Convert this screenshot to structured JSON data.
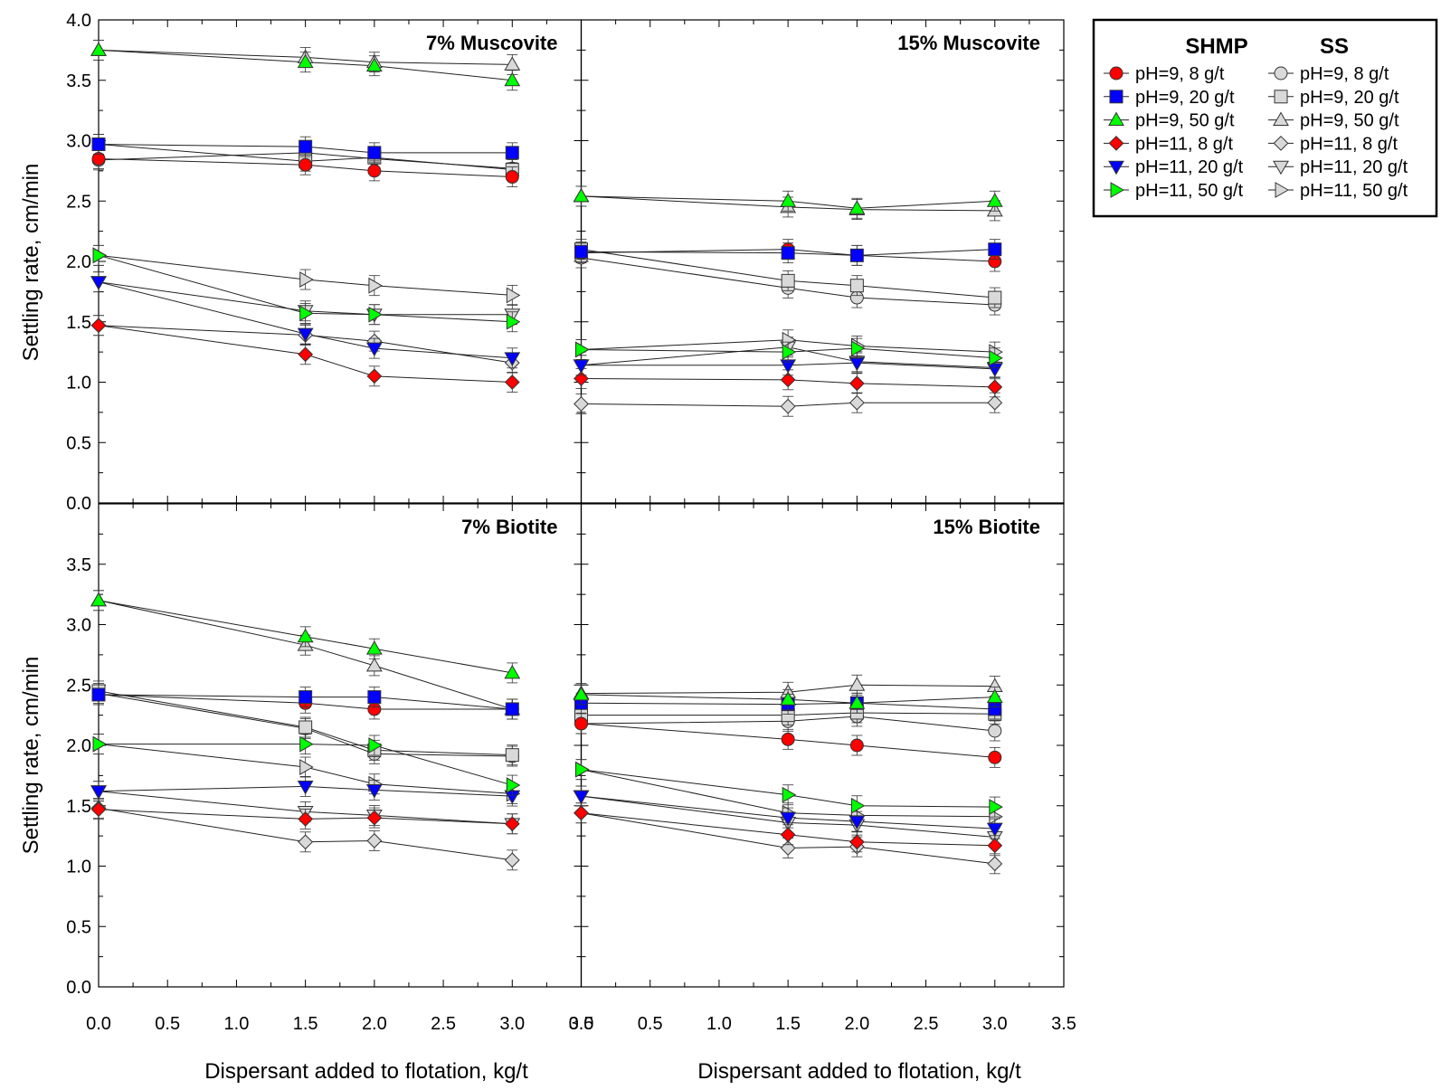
{
  "figure": {
    "y_axis_label": "Settling rate, cm/min",
    "x_axis_label": "Dispersant added to flotation, kg/t",
    "x_ticks": [
      "0.0",
      "0.5",
      "1.0",
      "1.5",
      "2.0",
      "2.5",
      "3.0",
      "3.5"
    ],
    "y_ticks_top": [
      "0.0",
      "0.5",
      "1.0",
      "1.5",
      "2.0",
      "2.5",
      "3.0",
      "3.5",
      "4.0"
    ],
    "y_ticks_bottom": [
      "0.0",
      "0.5",
      "1.0",
      "1.5",
      "2.0",
      "2.5",
      "3.0",
      "3.5"
    ],
    "bottom_left_x_last_tick": "3.5",
    "bottom_right_x_first_tick": "0.0"
  },
  "legend": {
    "placement": "right",
    "header_shmp": "SHMP",
    "header_ss": "SS",
    "shmp": [
      {
        "label": "pH=9, 8 g/t",
        "marker": "circle",
        "color": "#ff0000"
      },
      {
        "label": "pH=9, 20 g/t",
        "marker": "square",
        "color": "#0000ff"
      },
      {
        "label": "pH=9, 50 g/t",
        "marker": "triangle-up",
        "color": "#00ff00"
      },
      {
        "label": "pH=11, 8 g/t",
        "marker": "diamond",
        "color": "#ff0000"
      },
      {
        "label": "pH=11, 20 g/t",
        "marker": "triangle-down",
        "color": "#0000ff"
      },
      {
        "label": "pH=11, 50 g/t",
        "marker": "triangle-right",
        "color": "#00ff00"
      }
    ],
    "ss": [
      {
        "label": "pH=9, 8 g/t",
        "marker": "circle",
        "color": "#d9d9d9"
      },
      {
        "label": "pH=9, 20 g/t",
        "marker": "square",
        "color": "#d9d9d9"
      },
      {
        "label": "pH=9, 50 g/t",
        "marker": "triangle-up",
        "color": "#d9d9d9"
      },
      {
        "label": "pH=11, 8 g/t",
        "marker": "diamond",
        "color": "#d9d9d9"
      },
      {
        "label": "pH=11, 20 g/t",
        "marker": "triangle-down",
        "color": "#d9d9d9"
      },
      {
        "label": "pH=11, 50 g/t",
        "marker": "triangle-right",
        "color": "#d9d9d9"
      }
    ]
  },
  "chart_data": [
    {
      "type": "line",
      "title": "7% Muscovite",
      "xlim": [
        0,
        3.5
      ],
      "ylim": [
        0,
        4.0
      ],
      "x": [
        0,
        1.5,
        2.0,
        3.0
      ],
      "series": [
        {
          "name": "SHMP pH=9, 8 g/t",
          "values": [
            2.85,
            2.8,
            2.75,
            2.7
          ]
        },
        {
          "name": "SHMP pH=9, 20 g/t",
          "values": [
            2.97,
            2.95,
            2.9,
            2.9
          ]
        },
        {
          "name": "SHMP pH=9, 50 g/t",
          "values": [
            3.75,
            3.65,
            3.62,
            3.5
          ]
        },
        {
          "name": "SHMP pH=11, 8 g/t",
          "values": [
            1.47,
            1.23,
            1.05,
            1.0
          ]
        },
        {
          "name": "SHMP pH=11, 20 g/t",
          "values": [
            1.83,
            1.4,
            1.28,
            1.2
          ]
        },
        {
          "name": "SHMP pH=11, 50 g/t",
          "values": [
            2.05,
            1.57,
            1.56,
            1.5
          ]
        },
        {
          "name": "SS pH=9, 8 g/t",
          "values": [
            2.84,
            2.9,
            2.85,
            2.77
          ]
        },
        {
          "name": "SS pH=9, 20 g/t",
          "values": [
            2.97,
            2.83,
            2.86,
            2.76
          ]
        },
        {
          "name": "SS pH=9, 50 g/t",
          "values": [
            3.75,
            3.69,
            3.65,
            3.63
          ]
        },
        {
          "name": "SS pH=11, 8 g/t",
          "values": [
            1.47,
            1.39,
            1.34,
            1.16
          ]
        },
        {
          "name": "SS pH=11, 20 g/t",
          "values": [
            1.83,
            1.59,
            1.56,
            1.56
          ]
        },
        {
          "name": "SS pH=11, 50 g/t",
          "values": [
            2.05,
            1.85,
            1.8,
            1.72
          ]
        }
      ]
    },
    {
      "type": "line",
      "title": "15% Muscovite",
      "xlim": [
        0,
        3.5
      ],
      "ylim": [
        0,
        4.0
      ],
      "x": [
        0,
        1.5,
        2.0,
        3.0
      ],
      "series": [
        {
          "name": "SHMP pH=9, 8 g/t",
          "values": [
            2.07,
            2.1,
            2.05,
            2.0
          ]
        },
        {
          "name": "SHMP pH=9, 20 g/t",
          "values": [
            2.08,
            2.07,
            2.05,
            2.1
          ]
        },
        {
          "name": "SHMP pH=9, 50 g/t",
          "values": [
            2.54,
            2.5,
            2.44,
            2.5
          ]
        },
        {
          "name": "SHMP pH=11, 8 g/t",
          "values": [
            1.03,
            1.02,
            0.99,
            0.96
          ]
        },
        {
          "name": "SHMP pH=11, 20 g/t",
          "values": [
            1.14,
            1.14,
            1.16,
            1.11
          ]
        },
        {
          "name": "SHMP pH=11, 50 g/t",
          "values": [
            1.27,
            1.25,
            1.28,
            1.2
          ]
        },
        {
          "name": "SS pH=9, 8 g/t",
          "values": [
            2.03,
            1.78,
            1.7,
            1.64
          ]
        },
        {
          "name": "SS pH=9, 20 g/t",
          "values": [
            2.1,
            1.84,
            1.8,
            1.7
          ]
        },
        {
          "name": "SS pH=9, 50 g/t",
          "values": [
            2.54,
            2.45,
            2.43,
            2.42
          ]
        },
        {
          "name": "SS pH=11, 8 g/t",
          "values": [
            0.82,
            0.8,
            0.83,
            0.83
          ]
        },
        {
          "name": "SS pH=11, 20 g/t",
          "values": [
            1.14,
            1.29,
            1.17,
            1.12
          ]
        },
        {
          "name": "SS pH=11, 50 g/t",
          "values": [
            1.27,
            1.35,
            1.3,
            1.25
          ]
        }
      ]
    },
    {
      "type": "line",
      "title": "7% Biotite",
      "xlim": [
        0,
        3.5
      ],
      "ylim": [
        0,
        4.0
      ],
      "x": [
        0,
        1.5,
        2.0,
        3.0
      ],
      "series": [
        {
          "name": "SHMP pH=9, 8 g/t",
          "values": [
            2.42,
            2.35,
            2.3,
            2.3
          ]
        },
        {
          "name": "SHMP pH=9, 20 g/t",
          "values": [
            2.42,
            2.4,
            2.4,
            2.3
          ]
        },
        {
          "name": "SHMP pH=9, 50 g/t",
          "values": [
            3.2,
            2.9,
            2.8,
            2.6
          ]
        },
        {
          "name": "SHMP pH=11, 8 g/t",
          "values": [
            1.47,
            1.39,
            1.4,
            1.35
          ]
        },
        {
          "name": "SHMP pH=11, 20 g/t",
          "values": [
            1.62,
            1.66,
            1.63,
            1.58
          ]
        },
        {
          "name": "SHMP pH=11, 50 g/t",
          "values": [
            2.01,
            2.01,
            2.0,
            1.67
          ]
        },
        {
          "name": "SS pH=9, 8 g/t",
          "values": [
            2.43,
            2.14,
            1.93,
            1.91
          ]
        },
        {
          "name": "SS pH=9, 20 g/t",
          "values": [
            2.45,
            2.15,
            1.96,
            1.92
          ]
        },
        {
          "name": "SS pH=9, 50 g/t",
          "values": [
            3.2,
            2.83,
            2.66,
            2.3
          ]
        },
        {
          "name": "SS pH=11, 8 g/t",
          "values": [
            1.48,
            1.2,
            1.21,
            1.05
          ]
        },
        {
          "name": "SS pH=11, 20 g/t",
          "values": [
            1.62,
            1.45,
            1.42,
            1.35
          ]
        },
        {
          "name": "SS pH=11, 50 g/t",
          "values": [
            2.01,
            1.82,
            1.68,
            1.6
          ]
        }
      ]
    },
    {
      "type": "line",
      "title": "15% Biotite",
      "xlim": [
        0,
        3.5
      ],
      "ylim": [
        0,
        4.0
      ],
      "x": [
        0,
        1.5,
        2.0,
        3.0
      ],
      "series": [
        {
          "name": "SHMP pH=9, 8 g/t",
          "values": [
            2.18,
            2.05,
            2.0,
            1.9
          ]
        },
        {
          "name": "SHMP pH=9, 20 g/t",
          "values": [
            2.35,
            2.34,
            2.35,
            2.3
          ]
        },
        {
          "name": "SHMP pH=9, 50 g/t",
          "values": [
            2.42,
            2.38,
            2.35,
            2.4
          ]
        },
        {
          "name": "SHMP pH=11, 8 g/t",
          "values": [
            1.44,
            1.26,
            1.2,
            1.17
          ]
        },
        {
          "name": "SHMP pH=11, 20 g/t",
          "values": [
            1.58,
            1.4,
            1.37,
            1.31
          ]
        },
        {
          "name": "SHMP pH=11, 50 g/t",
          "values": [
            1.8,
            1.59,
            1.5,
            1.49
          ]
        },
        {
          "name": "SS pH=9, 8 g/t",
          "values": [
            2.18,
            2.2,
            2.24,
            2.12
          ]
        },
        {
          "name": "SS pH=9, 20 g/t",
          "values": [
            2.25,
            2.25,
            2.27,
            2.26
          ]
        },
        {
          "name": "SS pH=9, 50 g/t",
          "values": [
            2.43,
            2.44,
            2.5,
            2.49
          ]
        },
        {
          "name": "SS pH=11, 8 g/t",
          "values": [
            1.44,
            1.15,
            1.16,
            1.02
          ]
        },
        {
          "name": "SS pH=11, 20 g/t",
          "values": [
            1.58,
            1.36,
            1.34,
            1.24
          ]
        },
        {
          "name": "SS pH=11, 50 g/t",
          "values": [
            1.8,
            1.44,
            1.42,
            1.41
          ]
        }
      ]
    }
  ]
}
